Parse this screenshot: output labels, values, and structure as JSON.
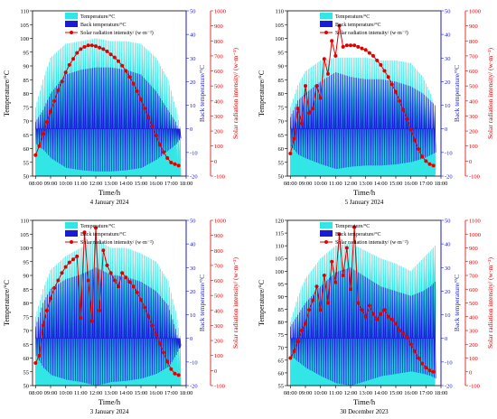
{
  "colors": {
    "temperature": "#33e6e6",
    "back_temperature": "#1a1ad9",
    "solar": "#e00000",
    "axis_blue": "#1a1ad9",
    "axis_red": "#e00000"
  },
  "chart_data": [
    {
      "type": "area",
      "caption": "4 January 2024",
      "xlabel": "Time/h",
      "ylabel_left": "Temperature/°C",
      "ylabel_right1": "Back temperature/°C",
      "ylabel_right2": "Solar radiation intensity/ (w·m⁻²)",
      "legend": [
        "Temperature/°C",
        "Back temperature/°C",
        "Solar radiation intensity/ (w·m⁻²)"
      ],
      "x_ticks": [
        "08:00",
        "09:00",
        "10:00",
        "11:00",
        "12:00",
        "13:00",
        "14:00",
        "15:00",
        "16:00",
        "17:00",
        "18:00"
      ],
      "y_left": {
        "min": 50,
        "max": 110,
        "ticks": [
          50,
          55,
          60,
          65,
          70,
          75,
          80,
          85,
          90,
          95,
          100,
          105,
          110
        ]
      },
      "y_right1": {
        "min": -20,
        "max": 50,
        "ticks": [
          -20,
          -10,
          0,
          10,
          20,
          30,
          40,
          50
        ]
      },
      "y_right2": {
        "min": -100,
        "max": 1000,
        "ticks": [
          -100,
          0,
          100,
          200,
          300,
          400,
          500,
          600,
          700,
          800,
          900,
          1000
        ]
      },
      "temperature_envelope": {
        "x": [
          8.0,
          8.5,
          9.0,
          10.0,
          11.0,
          12.0,
          13.0,
          14.0,
          15.0,
          16.0,
          16.8,
          17.3,
          17.6
        ],
        "y": [
          75,
          85,
          93,
          98,
          99,
          100,
          99,
          99,
          98,
          93,
          85,
          75,
          68
        ]
      },
      "back_envelope": {
        "x": [
          8.0,
          8.5,
          9.0,
          10.0,
          11.0,
          12.0,
          13.0,
          14.0,
          15.0,
          16.0,
          16.8,
          17.3,
          17.6
        ],
        "y": [
          3,
          8,
          15,
          23,
          25,
          26,
          26,
          25,
          23,
          16,
          8,
          3,
          -2
        ]
      },
      "back_base": 0,
      "solar": {
        "x": [
          8.0,
          8.25,
          8.5,
          8.75,
          9.0,
          9.25,
          9.5,
          9.75,
          10.0,
          10.25,
          10.5,
          10.75,
          11.0,
          11.25,
          11.5,
          11.75,
          12.0,
          12.25,
          12.5,
          12.75,
          13.0,
          13.25,
          13.5,
          13.75,
          14.0,
          14.25,
          14.5,
          14.75,
          15.0,
          15.25,
          15.5,
          15.75,
          16.0,
          16.25,
          16.5,
          16.75,
          17.0,
          17.25,
          17.5
        ],
        "y": [
          40,
          100,
          180,
          260,
          330,
          400,
          470,
          530,
          590,
          640,
          680,
          720,
          745,
          760,
          770,
          770,
          765,
          755,
          745,
          730,
          710,
          690,
          665,
          635,
          600,
          560,
          515,
          465,
          410,
          350,
          290,
          230,
          170,
          110,
          60,
          20,
          -10,
          -20,
          -30
        ]
      }
    },
    {
      "type": "area",
      "caption": "5 January 2024",
      "xlabel": "Time/h",
      "ylabel_left": "Temperature/°C",
      "ylabel_right1": "Back temperature/°C",
      "ylabel_right2": "Solar radiation intensity/ (w·m⁻²)",
      "legend": [
        "Temperature/°C",
        "Back temperature/°C",
        "Solar radiation intensity/ (w·m⁻²)"
      ],
      "x_ticks": [
        "08:00",
        "09:00",
        "10:00",
        "11:00",
        "12:00",
        "13:00",
        "14:00",
        "15:00",
        "16:00",
        "17:00",
        "18:00"
      ],
      "y_left": {
        "min": 50,
        "max": 110,
        "ticks": [
          50,
          55,
          60,
          65,
          70,
          75,
          80,
          85,
          90,
          95,
          100,
          105,
          110
        ]
      },
      "y_right1": {
        "min": -20,
        "max": 50,
        "ticks": [
          -20,
          -10,
          0,
          10,
          20,
          30,
          40,
          50
        ]
      },
      "y_right2": {
        "min": -100,
        "max": 1000,
        "ticks": [
          -100,
          0,
          100,
          200,
          300,
          400,
          500,
          600,
          700,
          800,
          900,
          1000
        ]
      },
      "temperature_envelope": {
        "x": [
          8.0,
          8.5,
          9.0,
          10.0,
          11.0,
          12.0,
          13.0,
          14.0,
          15.0,
          16.0,
          16.8,
          17.3,
          17.6
        ],
        "y": [
          75,
          83,
          88,
          92,
          93,
          93,
          93,
          92,
          92,
          91,
          86,
          80,
          75
        ]
      },
      "back_envelope": {
        "x": [
          8.0,
          8.5,
          9.0,
          10.0,
          11.0,
          12.0,
          13.0,
          14.0,
          15.0,
          16.0,
          16.8,
          17.3,
          17.6
        ],
        "y": [
          5,
          12,
          15,
          20,
          24,
          22,
          21,
          21,
          20,
          18,
          15,
          12,
          10
        ]
      },
      "back_base": 0,
      "solar": {
        "x": [
          8.0,
          8.25,
          8.5,
          8.75,
          9.0,
          9.25,
          9.5,
          9.75,
          10.0,
          10.25,
          10.5,
          10.75,
          11.0,
          11.25,
          11.5,
          11.75,
          12.0,
          12.25,
          12.5,
          12.75,
          13.0,
          13.25,
          13.5,
          13.75,
          14.0,
          14.25,
          14.5,
          14.75,
          15.0,
          15.25,
          15.5,
          15.75,
          16.0,
          16.25,
          16.5,
          16.75,
          17.0,
          17.25,
          17.5
        ],
        "y": [
          50,
          150,
          350,
          250,
          500,
          320,
          350,
          500,
          420,
          680,
          580,
          800,
          700,
          900,
          760,
          770,
          770,
          770,
          760,
          750,
          740,
          720,
          700,
          670,
          640,
          600,
          560,
          510,
          460,
          400,
          340,
          280,
          210,
          140,
          80,
          30,
          0,
          -20,
          -30
        ]
      }
    },
    {
      "type": "area",
      "caption": "3 January 2024",
      "xlabel": "Time/h",
      "ylabel_left": "Temperature/°C",
      "ylabel_right1": "Back temperature/°C",
      "ylabel_right2": "Solar radiation intensity/ (w·m⁻²)",
      "legend": [
        "Temperature/°C",
        "Back temperature/°C",
        "Solar radiation intensity/ (w·m⁻²)"
      ],
      "x_ticks": [
        "08:00",
        "09:00",
        "10:00",
        "11:00",
        "12:00",
        "13:00",
        "14:00",
        "15:00",
        "16:00",
        "17:00",
        "18:00"
      ],
      "y_left": {
        "min": 50,
        "max": 110,
        "ticks": [
          50,
          55,
          60,
          65,
          70,
          75,
          80,
          85,
          90,
          95,
          100,
          105,
          110
        ]
      },
      "y_right1": {
        "min": -20,
        "max": 50,
        "ticks": [
          -20,
          -10,
          0,
          10,
          20,
          30,
          40,
          50
        ]
      },
      "y_right2": {
        "min": -100,
        "max": 1000,
        "ticks": [
          -100,
          0,
          100,
          200,
          300,
          400,
          500,
          600,
          700,
          800,
          900,
          1000
        ]
      },
      "temperature_envelope": {
        "x": [
          8.0,
          8.5,
          9.0,
          10.0,
          11.0,
          12.0,
          13.0,
          14.0,
          15.0,
          16.0,
          16.8,
          17.3,
          17.6
        ],
        "y": [
          75,
          85,
          92,
          97,
          100,
          103,
          100,
          100,
          98,
          95,
          88,
          77,
          68
        ]
      },
      "back_envelope": {
        "x": [
          8.0,
          8.5,
          9.0,
          10.0,
          11.0,
          12.0,
          13.0,
          14.0,
          15.0,
          16.0,
          16.8,
          17.3,
          17.6
        ],
        "y": [
          5,
          15,
          21,
          25,
          27,
          30,
          27,
          26,
          24,
          20,
          14,
          4,
          -4
        ]
      },
      "back_base": 0,
      "solar": {
        "x": [
          8.0,
          8.25,
          8.5,
          8.75,
          9.0,
          9.25,
          9.5,
          9.75,
          10.0,
          10.25,
          10.5,
          10.75,
          11.0,
          11.25,
          11.5,
          11.75,
          12.0,
          12.25,
          12.5,
          12.75,
          13.0,
          13.25,
          13.5,
          13.75,
          14.0,
          14.25,
          14.5,
          14.75,
          15.0,
          15.25,
          15.5,
          15.75,
          16.0,
          16.25,
          16.5,
          16.75,
          17.0,
          17.25,
          17.5
        ],
        "y": [
          50,
          100,
          300,
          400,
          480,
          550,
          600,
          650,
          690,
          720,
          740,
          760,
          350,
          920,
          600,
          330,
          950,
          400,
          800,
          700,
          650,
          600,
          560,
          650,
          620,
          590,
          560,
          520,
          470,
          420,
          360,
          300,
          240,
          180,
          120,
          60,
          10,
          -20,
          -30
        ]
      }
    },
    {
      "type": "area",
      "caption": "30 December 2023",
      "xlabel": "Time/h",
      "ylabel_left": "Temperature/°C",
      "ylabel_right1": "Back temperature/°C",
      "ylabel_right2": "Solar radiation intensity/ (w·m⁻²)",
      "legend": [
        "Temperature/°C",
        "Back temperature/°C",
        "Solar radiation intensity/ (w·m⁻²)"
      ],
      "x_ticks": [
        "08:00",
        "09:00",
        "10:00",
        "11:00",
        "12:00",
        "13:00",
        "14:00",
        "15:00",
        "16:00",
        "17:00",
        "18:00"
      ],
      "y_left": {
        "min": 55,
        "max": 120,
        "ticks": [
          55,
          60,
          65,
          70,
          75,
          80,
          85,
          90,
          95,
          100,
          105,
          110,
          115,
          120
        ]
      },
      "y_right1": {
        "min": -20,
        "max": 50,
        "ticks": [
          -20,
          -10,
          0,
          10,
          20,
          30,
          40,
          50
        ]
      },
      "y_right2": {
        "min": -100,
        "max": 1100,
        "ticks": [
          -100,
          0,
          100,
          200,
          300,
          400,
          500,
          600,
          700,
          800,
          900,
          1000,
          1100
        ]
      },
      "temperature_envelope": {
        "x": [
          8.0,
          8.5,
          9.0,
          10.0,
          11.0,
          12.0,
          13.0,
          14.0,
          15.0,
          16.0,
          16.8,
          17.3,
          17.6
        ],
        "y": [
          80,
          90,
          97,
          105,
          110,
          111,
          108,
          105,
          103,
          100,
          105,
          108,
          110
        ]
      },
      "back_envelope": {
        "x": [
          8.0,
          8.5,
          9.0,
          10.0,
          11.0,
          12.0,
          13.0,
          14.0,
          15.0,
          16.0,
          16.8,
          17.3,
          17.6
        ],
        "y": [
          5,
          10,
          15,
          22,
          28,
          30,
          26,
          22,
          20,
          18,
          20,
          22,
          24
        ]
      },
      "back_base": 0,
      "solar": {
        "x": [
          8.0,
          8.25,
          8.5,
          8.75,
          9.0,
          9.25,
          9.5,
          9.75,
          10.0,
          10.25,
          10.5,
          10.75,
          11.0,
          11.25,
          11.5,
          11.75,
          12.0,
          12.25,
          12.5,
          12.75,
          13.0,
          13.25,
          13.5,
          13.75,
          14.0,
          14.25,
          14.5,
          14.75,
          15.0,
          15.25,
          15.5,
          15.75,
          16.0,
          16.25,
          16.5,
          16.75,
          17.0,
          17.25,
          17.5
        ],
        "y": [
          100,
          150,
          220,
          300,
          350,
          450,
          520,
          620,
          450,
          700,
          500,
          800,
          650,
          1000,
          700,
          900,
          600,
          1050,
          500,
          450,
          400,
          480,
          420,
          380,
          420,
          450,
          400,
          380,
          350,
          300,
          280,
          250,
          200,
          150,
          100,
          60,
          30,
          10,
          0
        ]
      }
    }
  ]
}
